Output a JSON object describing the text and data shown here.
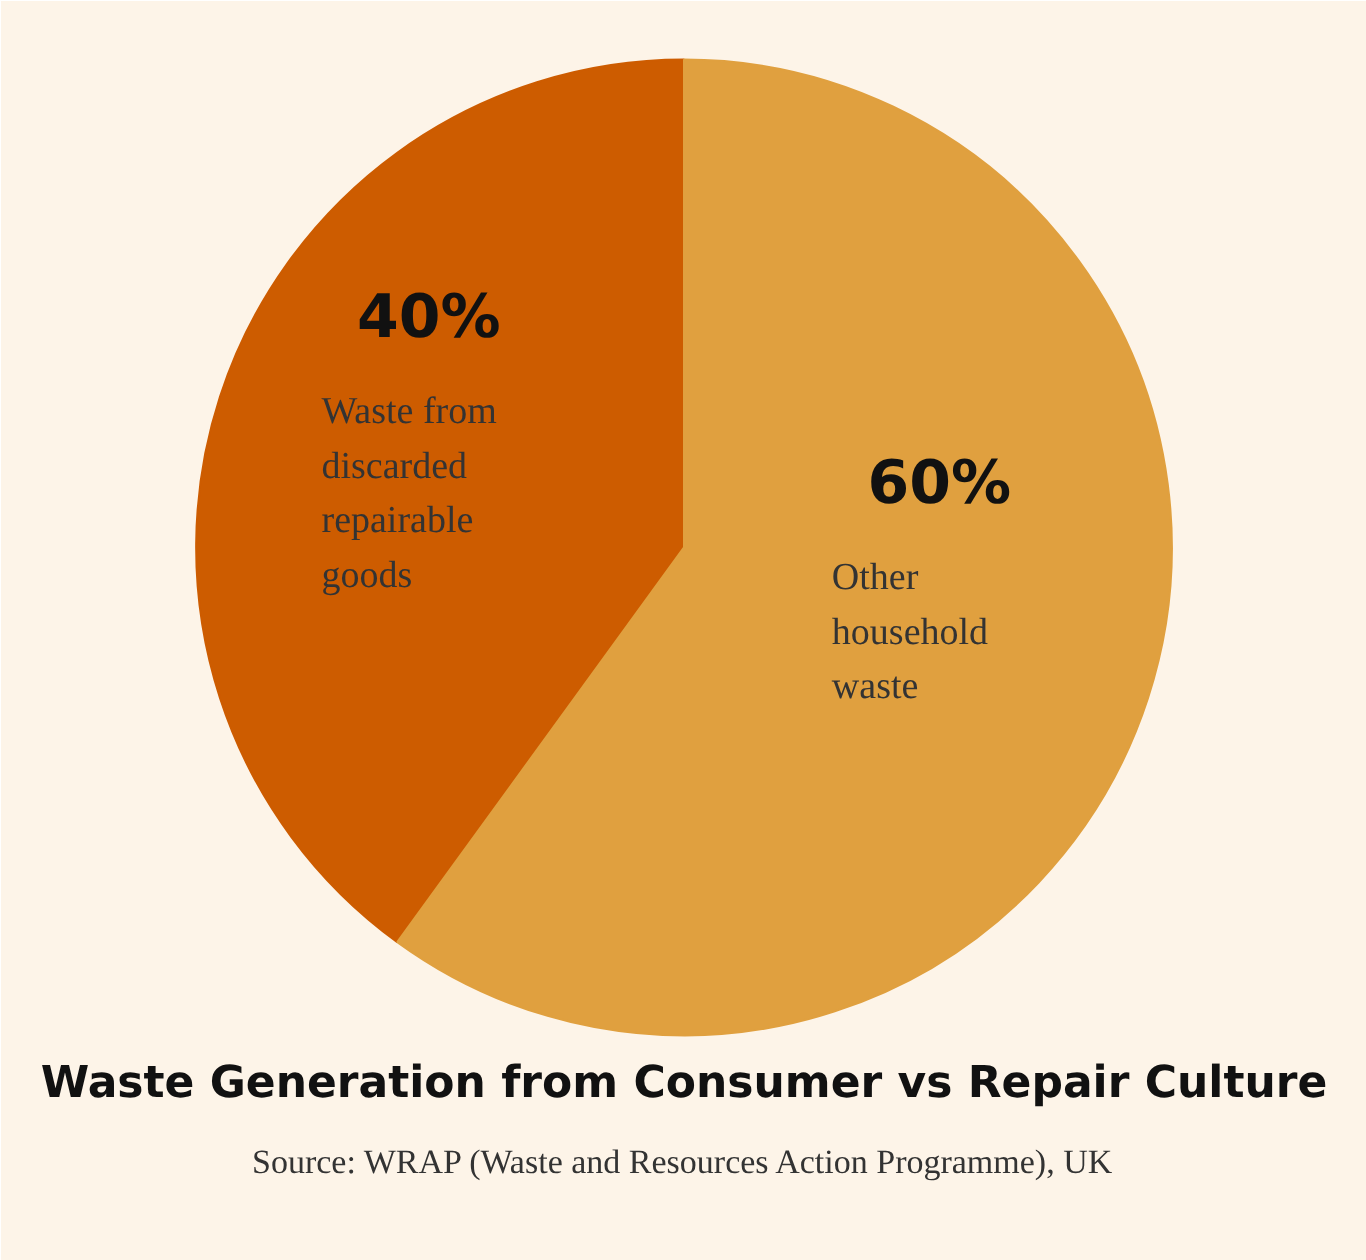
{
  "chart_data": {
    "type": "pie",
    "title": "Waste Generation from Consumer vs Repair Culture",
    "categories": [
      "Waste from discarded repairable goods",
      "Other household waste"
    ],
    "values": [
      40,
      60
    ],
    "colors": [
      "#cd5c00",
      "#e0a03f"
    ],
    "value_labels": [
      "40%",
      "60%"
    ],
    "annotations": [
      "Source: WRAP (Waste and Resources Action Programme), UK"
    ]
  }
}
